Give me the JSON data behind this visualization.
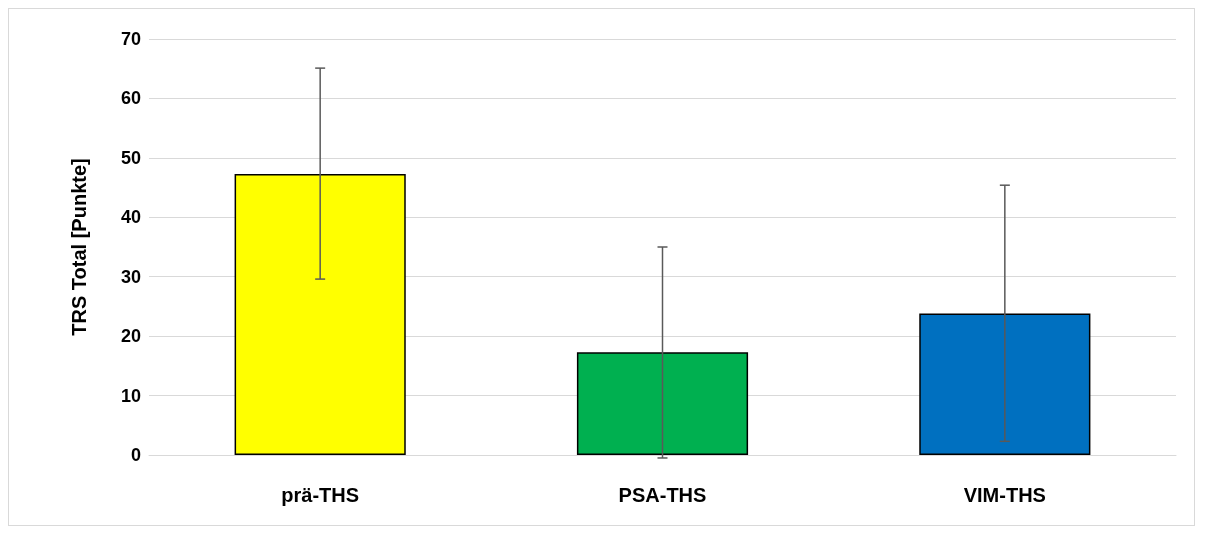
{
  "chart_data": {
    "type": "bar",
    "ylabel": "TRS Total [Punkte]",
    "categories": [
      "prä-THS",
      "PSA-THS",
      "VIM-THS"
    ],
    "values": [
      47.3,
      17.3,
      23.8
    ],
    "colors": [
      "#ffff00",
      "#00b050",
      "#0070c0"
    ],
    "errors": [
      [
        29.6,
        65.1
      ],
      [
        -0.5,
        35.0
      ],
      [
        2.3,
        45.4
      ]
    ],
    "ylim": [
      0,
      70
    ],
    "yticks": [
      0,
      10,
      20,
      30,
      40,
      50,
      60,
      70
    ],
    "grid": "y"
  }
}
